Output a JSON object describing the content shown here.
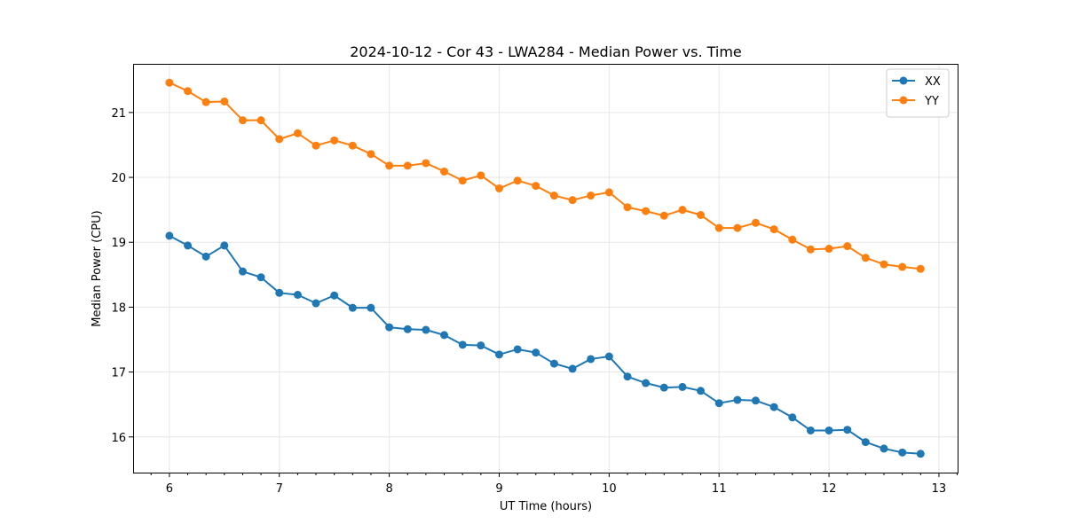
{
  "chart_data": {
    "type": "line",
    "title": "2024-10-12 - Cor 43 - LWA284 - Median Power vs. Time",
    "xlabel": "UT Time (hours)",
    "ylabel": "Median Power (CPU)",
    "xlim": [
      5.67,
      13.17
    ],
    "ylim": [
      15.45,
      21.75
    ],
    "xticks": [
      6,
      7,
      8,
      9,
      10,
      11,
      12,
      13
    ],
    "yticks": [
      16,
      17,
      18,
      19,
      20,
      21
    ],
    "grid": true,
    "legend_position": "top-right",
    "x": [
      6.0,
      6.167,
      6.333,
      6.5,
      6.667,
      6.833,
      7.0,
      7.167,
      7.333,
      7.5,
      7.667,
      7.833,
      8.0,
      8.167,
      8.333,
      8.5,
      8.667,
      8.833,
      9.0,
      9.167,
      9.333,
      9.5,
      9.667,
      9.833,
      10.0,
      10.167,
      10.333,
      10.5,
      10.667,
      10.833,
      11.0,
      11.167,
      11.333,
      11.5,
      11.667,
      11.833,
      12.0,
      12.167,
      12.333,
      12.5,
      12.667,
      12.833
    ],
    "series": [
      {
        "name": "XX",
        "color": "#1f77b4",
        "values": [
          19.1,
          18.95,
          18.78,
          18.95,
          18.55,
          18.46,
          18.22,
          18.19,
          18.06,
          18.18,
          17.99,
          17.99,
          17.69,
          17.66,
          17.65,
          17.57,
          17.42,
          17.41,
          17.27,
          17.35,
          17.3,
          17.13,
          17.05,
          17.2,
          17.24,
          16.93,
          16.83,
          16.76,
          16.77,
          16.71,
          16.52,
          16.57,
          16.56,
          16.46,
          16.3,
          16.1,
          16.1,
          16.11,
          15.92,
          15.82,
          15.76,
          15.74
        ]
      },
      {
        "name": "YY",
        "color": "#ff7f0e",
        "values": [
          21.46,
          21.33,
          21.16,
          21.17,
          20.88,
          20.88,
          20.59,
          20.68,
          20.49,
          20.57,
          20.49,
          20.36,
          20.18,
          20.18,
          20.22,
          20.09,
          19.95,
          20.03,
          19.83,
          19.95,
          19.87,
          19.72,
          19.65,
          19.72,
          19.77,
          19.54,
          19.48,
          19.41,
          19.5,
          19.42,
          19.22,
          19.22,
          19.3,
          19.2,
          19.04,
          18.89,
          18.9,
          18.94,
          18.76,
          18.66,
          18.62,
          18.59
        ]
      }
    ]
  }
}
